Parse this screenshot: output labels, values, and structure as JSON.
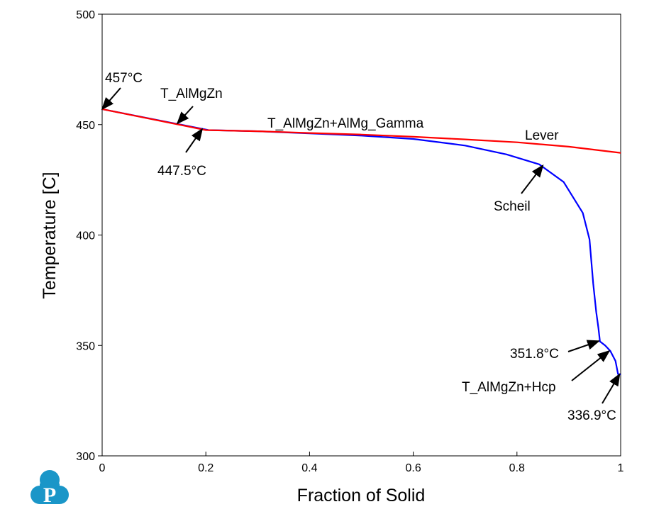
{
  "chart_data": {
    "type": "line",
    "title": "",
    "xlabel": "Fraction of Solid",
    "ylabel": "Temperature [C]",
    "xlim": [
      0,
      1
    ],
    "ylim": [
      300,
      500
    ],
    "xticks": [
      "0",
      "0.2",
      "0.4",
      "0.6",
      "0.8",
      "1"
    ],
    "yticks": [
      "300",
      "350",
      "400",
      "450",
      "500"
    ],
    "grid": false,
    "series": [
      {
        "name": "Scheil",
        "color": "#0000ff",
        "x": [
          0,
          0.205,
          0.3,
          0.4,
          0.5,
          0.6,
          0.7,
          0.78,
          0.843,
          0.89,
          0.927,
          0.94,
          0.947,
          0.953,
          0.957,
          0.96,
          0.97,
          0.98,
          0.99,
          0.995,
          1.0
        ],
        "y": [
          457,
          447.5,
          447,
          446,
          445,
          443.5,
          440.5,
          436.5,
          432,
          424,
          410,
          398,
          378,
          365,
          358,
          351.8,
          350,
          347.5,
          343,
          337,
          336.9
        ]
      },
      {
        "name": "Lever",
        "color": "#ff0000",
        "x": [
          0,
          0.2,
          0.3,
          0.4,
          0.5,
          0.6,
          0.7,
          0.8,
          0.9,
          1.0
        ],
        "y": [
          457,
          447.5,
          447,
          446.2,
          445.5,
          444.5,
          443.3,
          442,
          440,
          437.2
        ]
      }
    ],
    "annotations": [
      {
        "text": "457°C",
        "x": 0,
        "y": 457
      },
      {
        "text": "T_AlMgZn",
        "x": 0.145,
        "y": 450.5
      },
      {
        "text": "447.5°C",
        "x": 0.193,
        "y": 448
      },
      {
        "text": "T_AlMgZn+AlMg_Gamma",
        "x": null,
        "y": null
      },
      {
        "text": "Lever",
        "x": null,
        "y": null
      },
      {
        "text": "Scheil",
        "x": 0.85,
        "y": 431.5
      },
      {
        "text": "351.8°C",
        "x": 0.958,
        "y": 352
      },
      {
        "text": "T_AlMgZn+Hcp",
        "x": 0.978,
        "y": 347.5
      },
      {
        "text": "336.9°C",
        "x": 0.998,
        "y": 337
      }
    ]
  },
  "logo": {
    "text": "P",
    "color": "#1a96c8"
  }
}
